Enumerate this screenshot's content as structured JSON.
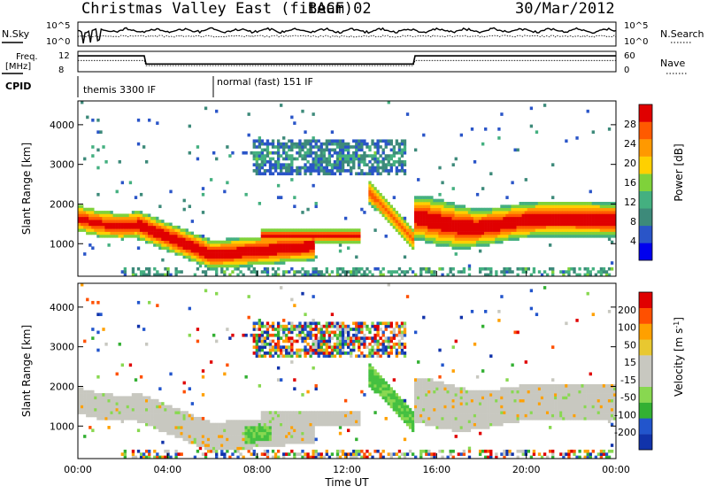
{
  "header": {
    "title": "Christmas Valley East (fitACF)",
    "beam": "Beam 02",
    "date": "30/Mar/2012"
  },
  "top_panels": {
    "nsky_label": "N.Sky",
    "nsky_ticks": [
      "10^5",
      "10^0"
    ],
    "nsearch_label": "N.Search",
    "nsearch_ticks": [
      "10^5",
      "10^0"
    ],
    "freq_label_1": "Freq.",
    "freq_label_2": "[MHz]",
    "freq_ticks": [
      "12",
      "8"
    ],
    "nave_label": "Nave",
    "nave_ticks": [
      "60",
      "0"
    ],
    "cpid_label": "CPID",
    "cpid_modes": [
      "themis 3300 IF",
      "normal (fast) 151 IF"
    ]
  },
  "colors": {
    "power_scale": [
      "#0000ee",
      "#2a55c8",
      "#3d8a7a",
      "#44b080",
      "#7fd23a",
      "#ffd000",
      "#ff9900",
      "#ff5a00",
      "#e00000"
    ],
    "velocity_scale": [
      "#e00000",
      "#ff5000",
      "#ffa000",
      "#e8c830",
      "#c8c8c0",
      "#c8c8c0",
      "#88d850",
      "#33b033",
      "#2255cc",
      "#1133aa"
    ]
  },
  "chart_data": [
    {
      "type": "heatmap",
      "title": "",
      "xlabel": "Time UT",
      "ylabel": "Slant Range [km]",
      "x_ticks": [
        "00:00",
        "04:00",
        "08:00",
        "12:00",
        "16:00",
        "20:00",
        "00:00"
      ],
      "y_ticks": [
        "1000",
        "2000",
        "3000",
        "4000"
      ],
      "xlim_hours": [
        0,
        24
      ],
      "ylim_km": [
        180,
        4600
      ],
      "colorbar": {
        "label": "Power [dB]",
        "range": [
          0,
          30
        ],
        "ticks": [
          "4",
          "8",
          "12",
          "16",
          "20",
          "24",
          "28"
        ]
      }
    },
    {
      "type": "heatmap",
      "title": "",
      "xlabel": "Time UT",
      "ylabel": "Slant Range [km]",
      "x_ticks": [
        "00:00",
        "04:00",
        "08:00",
        "12:00",
        "16:00",
        "20:00",
        "00:00"
      ],
      "y_ticks": [
        "1000",
        "2000",
        "3000",
        "4000"
      ],
      "xlim_hours": [
        0,
        24
      ],
      "ylim_km": [
        180,
        4600
      ],
      "colorbar": {
        "label": "Velocity [m s^-1]",
        "range": [
          -250,
          250
        ],
        "ticks": [
          "200",
          "100",
          "50",
          "15",
          "-15",
          "-50",
          "-100",
          "-200"
        ]
      }
    }
  ]
}
